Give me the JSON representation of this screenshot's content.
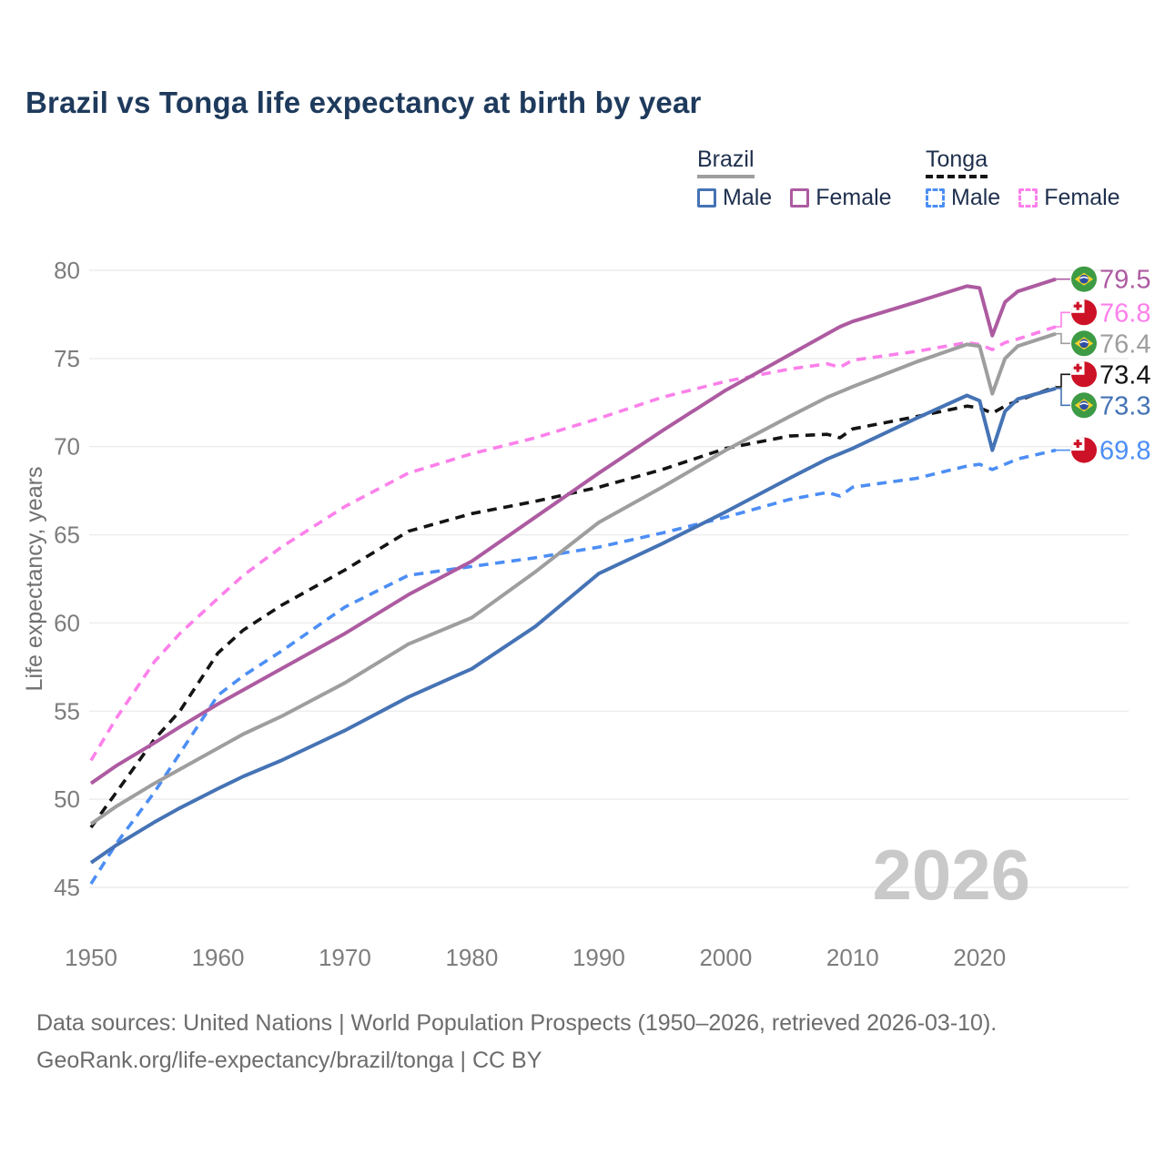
{
  "title": "Brazil vs Tonga life expectancy at birth by year",
  "watermark": "2026",
  "legend": {
    "groups": [
      {
        "country": "Brazil",
        "line_style": "solid",
        "underline_color": "#9e9e9e",
        "items": [
          {
            "label": "Male",
            "color": "#4573b5",
            "dashed": false
          },
          {
            "label": "Female",
            "color": "#ad5ba1",
            "dashed": false
          }
        ]
      },
      {
        "country": "Tonga",
        "line_style": "dashed",
        "underline_color": "#141414",
        "items": [
          {
            "label": "Male",
            "color": "#4c8ef5",
            "dashed": true
          },
          {
            "label": "Female",
            "color": "#fc80ea",
            "dashed": true
          }
        ]
      }
    ]
  },
  "y_axis": {
    "title": "Life expectancy, years",
    "ticks": [
      45,
      50,
      55,
      60,
      65,
      70,
      75,
      80
    ]
  },
  "x_axis": {
    "ticks": [
      1950,
      1960,
      1970,
      1980,
      1990,
      2000,
      2010,
      2020
    ]
  },
  "footer": {
    "line1": "Data sources: United Nations | World Population Prospects (1950–2026, retrieved 2026-03-10).",
    "line2": "GeoRank.org/life-expectancy/brazil/tonga | CC BY"
  },
  "chart_data": {
    "type": "line",
    "title": "Brazil vs Tonga life expectancy at birth by year",
    "xlabel": "",
    "ylabel": "Life expectancy, years",
    "xlim": [
      1950,
      2026
    ],
    "ylim": [
      43.5,
      81.5
    ],
    "grid": "horizontal",
    "legend_position": "top-right",
    "x": [
      1950,
      1952,
      1955,
      1957,
      1960,
      1962,
      1965,
      1970,
      1975,
      1980,
      1985,
      1990,
      1995,
      2000,
      2005,
      2008,
      2009,
      2010,
      2015,
      2019,
      2020,
      2021,
      2022,
      2023,
      2026
    ],
    "series": [
      {
        "name": "Brazil Female",
        "country": "brazil",
        "sex": "female",
        "color": "#ad5ba1",
        "dashed": false,
        "end_value": "79.5",
        "values": [
          50.9,
          51.9,
          53.2,
          54.1,
          55.4,
          56.2,
          57.4,
          59.4,
          61.6,
          63.5,
          66.0,
          68.5,
          70.9,
          73.2,
          75.2,
          76.4,
          76.8,
          77.1,
          78.2,
          79.1,
          79.0,
          76.3,
          78.2,
          78.8,
          79.5
        ]
      },
      {
        "name": "Tonga Female",
        "country": "tonga",
        "sex": "female",
        "color": "#fc80ea",
        "dashed": true,
        "end_value": "76.8",
        "values": [
          52.2,
          54.6,
          57.8,
          59.4,
          61.4,
          62.7,
          64.3,
          66.6,
          68.5,
          69.6,
          70.5,
          71.6,
          72.8,
          73.7,
          74.4,
          74.7,
          74.5,
          74.9,
          75.4,
          75.9,
          75.8,
          75.5,
          75.9,
          76.1,
          76.8
        ]
      },
      {
        "name": "Brazil",
        "country": "brazil",
        "sex": "both",
        "color": "#9e9e9e",
        "dashed": false,
        "end_value": "76.4",
        "values": [
          48.6,
          49.6,
          50.9,
          51.7,
          52.9,
          53.7,
          54.7,
          56.6,
          58.8,
          60.3,
          62.9,
          65.7,
          67.7,
          69.8,
          71.7,
          72.8,
          73.1,
          73.4,
          74.8,
          75.8,
          75.7,
          73.0,
          75.0,
          75.7,
          76.4
        ]
      },
      {
        "name": "Tonga",
        "country": "tonga",
        "sex": "both",
        "color": "#141414",
        "dashed": true,
        "end_value": "73.4",
        "values": [
          48.4,
          50.4,
          53.4,
          55.0,
          58.3,
          59.6,
          61.0,
          63.0,
          65.2,
          66.2,
          66.9,
          67.7,
          68.7,
          69.9,
          70.6,
          70.7,
          70.5,
          71.0,
          71.7,
          72.3,
          72.2,
          71.9,
          72.3,
          72.6,
          73.4
        ]
      },
      {
        "name": "Brazil Male",
        "country": "brazil",
        "sex": "male",
        "color": "#4573b5",
        "dashed": false,
        "end_value": "73.3",
        "values": [
          46.4,
          47.4,
          48.7,
          49.5,
          50.6,
          51.3,
          52.2,
          53.9,
          55.8,
          57.4,
          59.8,
          62.8,
          64.5,
          66.3,
          68.2,
          69.3,
          69.6,
          69.9,
          71.6,
          72.9,
          72.6,
          69.8,
          72.0,
          72.7,
          73.3
        ]
      },
      {
        "name": "Tonga Male",
        "country": "tonga",
        "sex": "male",
        "color": "#4c8ef5",
        "dashed": true,
        "end_value": "69.8",
        "values": [
          45.2,
          47.5,
          50.4,
          52.6,
          55.9,
          57.0,
          58.4,
          60.9,
          62.7,
          63.2,
          63.7,
          64.3,
          65.1,
          66.0,
          67.0,
          67.4,
          67.2,
          67.7,
          68.2,
          68.9,
          69.0,
          68.7,
          69.0,
          69.3,
          69.8
        ]
      }
    ]
  }
}
